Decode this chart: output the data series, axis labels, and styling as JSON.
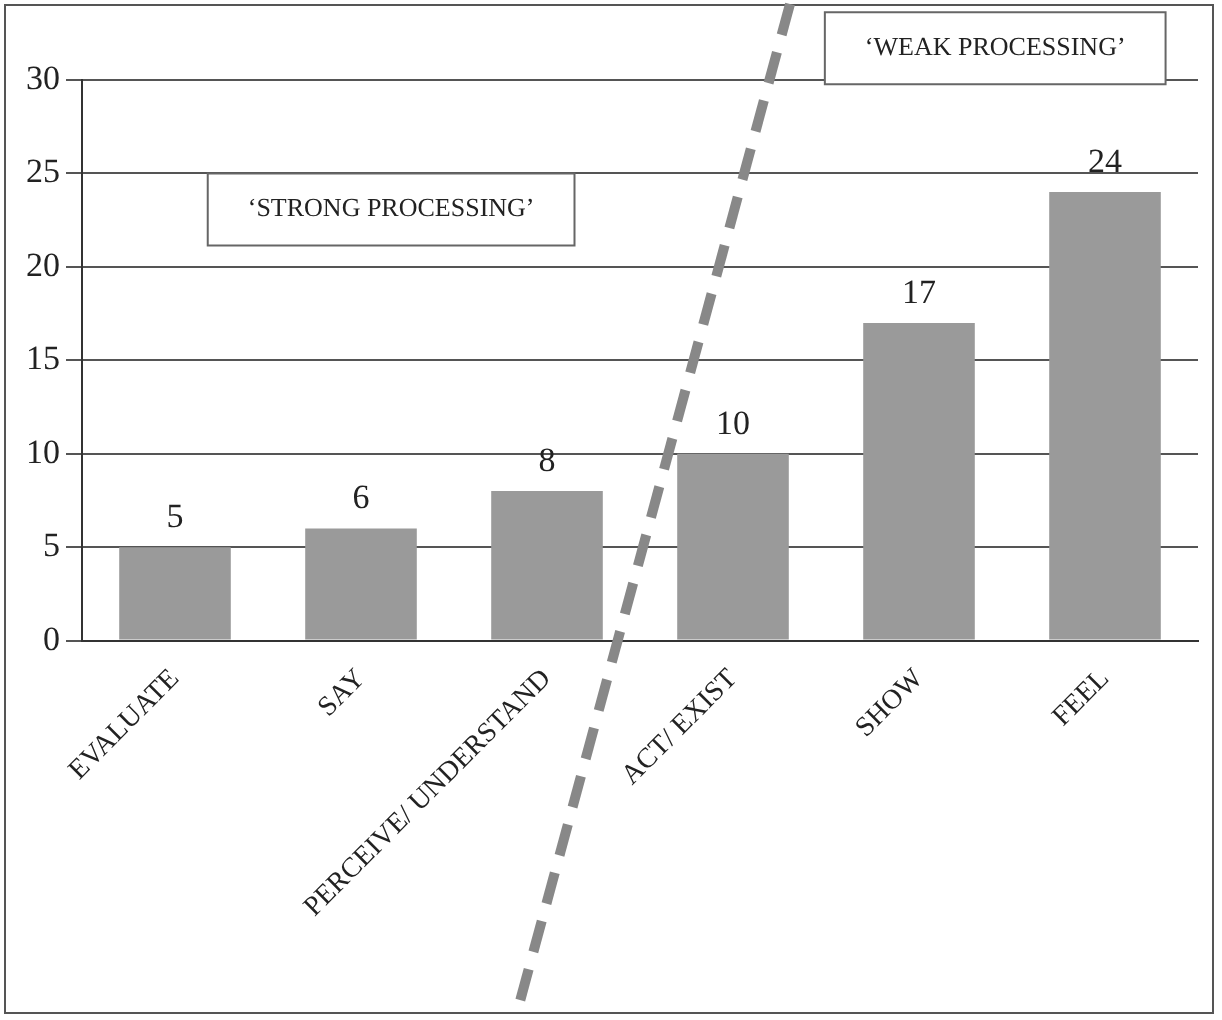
{
  "chart_data": {
    "type": "bar",
    "categories": [
      "EVALUATE",
      "SAY",
      "PERCEIVE/ UNDERSTAND",
      "ACT/ EXIST",
      "SHOW",
      "FEEL"
    ],
    "values": [
      5,
      6,
      8,
      10,
      17,
      24
    ],
    "color": "#9a9a9a",
    "ylim": [
      0,
      30
    ],
    "yticks": [
      0,
      5,
      10,
      15,
      20,
      25,
      30
    ],
    "grid": "y",
    "data_labels": true,
    "legend": false,
    "annotations": [
      "‘STRONG PROCESSING’",
      "‘WEAK PROCESSING’"
    ]
  }
}
